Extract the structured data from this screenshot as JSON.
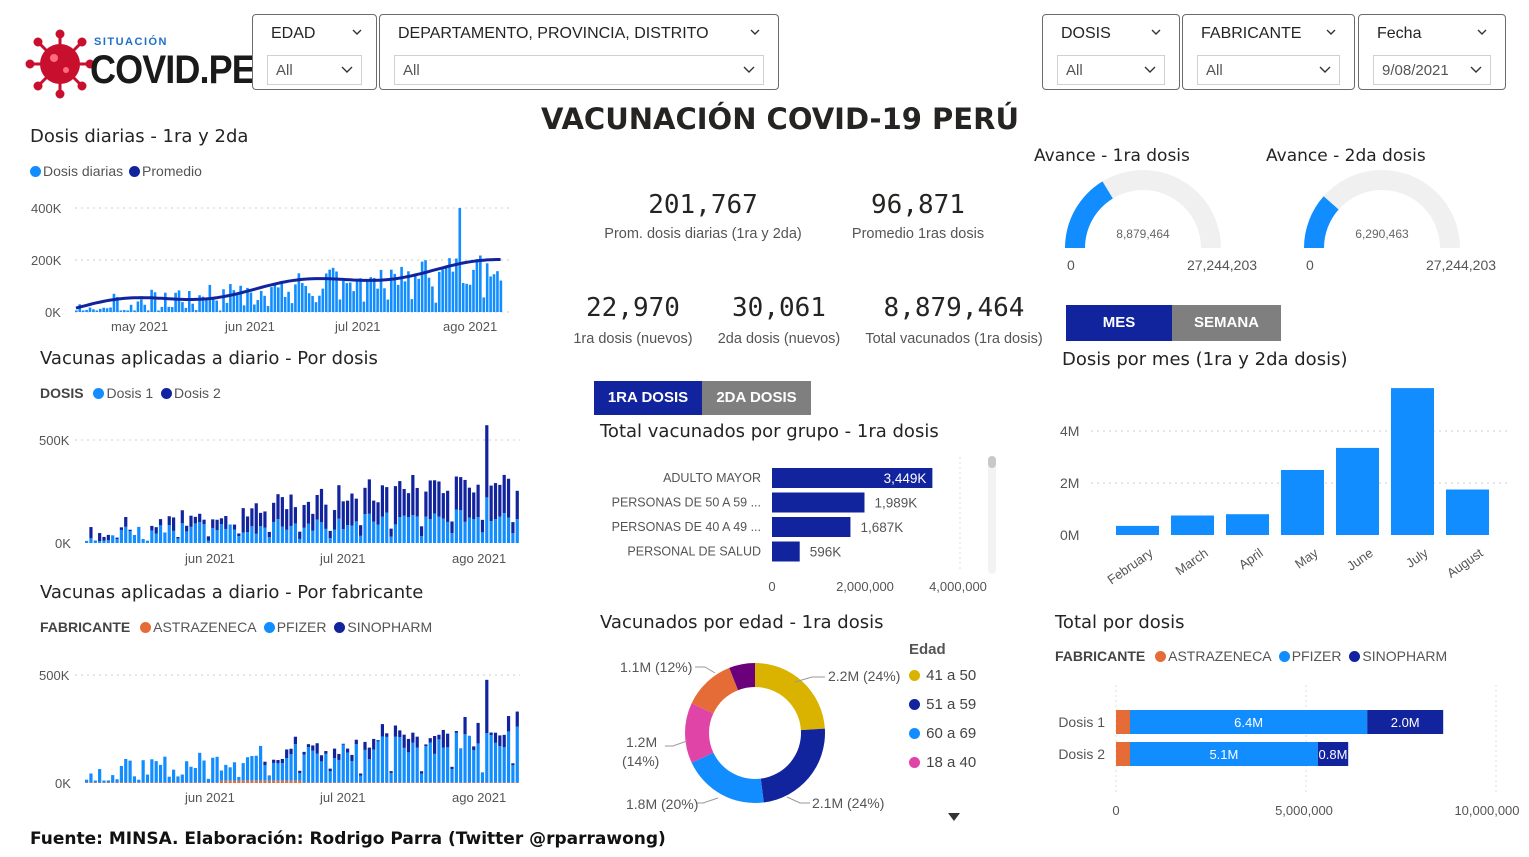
{
  "logo": {
    "small": "SITUACIÓN",
    "big": "COVID.PE"
  },
  "main_title": "VACUNACIÓN COVID-19 PERÚ",
  "footer": "Fuente: MINSA. Elaboración: Rodrigo Parra (Twitter @rparrawong)",
  "filters": {
    "edad": {
      "label": "EDAD",
      "value": "All"
    },
    "ubicacion": {
      "label": "DEPARTAMENTO, PROVINCIA, DISTRITO",
      "value": "All"
    },
    "dosis": {
      "label": "DOSIS",
      "value": "All"
    },
    "fabricante": {
      "label": "FABRICANTE",
      "value": "All"
    },
    "fecha": {
      "label": "Fecha",
      "value": "9/08/2021"
    }
  },
  "kpis": {
    "prom_diarias": {
      "value": "201,767",
      "label": "Prom. dosis diarias (1ra y 2da)"
    },
    "prom_1ras": {
      "value": "96,871",
      "label": "Promedio 1ras dosis"
    },
    "nuevos_1ra": {
      "value": "22,970",
      "label": "1ra dosis (nuevos)"
    },
    "nuevos_2da": {
      "value": "30,061",
      "label": "2da dosis (nuevos)"
    },
    "total_vacunados": {
      "value": "8,879,464",
      "label": "Total vacunados (1ra dosis)"
    }
  },
  "gauges": {
    "g1": {
      "title": "Avance - 1ra dosis",
      "value_label": "8,879,464",
      "value": 8879464,
      "min": "0",
      "max": "27,244,203",
      "max_value": 27244203
    },
    "g2": {
      "title": "Avance - 2da dosis",
      "value_label": "6,290,463",
      "value": 6290463,
      "min": "0",
      "max": "27,244,203",
      "max_value": 27244203
    }
  },
  "toggles": {
    "periodo": {
      "active": "MES",
      "inactive": "SEMANA"
    },
    "dosis": {
      "active": "1RA DOSIS",
      "inactive": "2DA DOSIS"
    }
  },
  "colors": {
    "light_blue": "#118DFF",
    "dark_blue": "#12239E",
    "orange": "#E66C37",
    "grey_btn": "#7f7f7f"
  },
  "chart1": {
    "title": "Dosis diarias - 1ra y 2da",
    "legend": [
      "Dosis diarias",
      "Promedio"
    ],
    "yticks": [
      "400K",
      "200K",
      "0K"
    ],
    "xticks": [
      "may 2021",
      "jun 2021",
      "jul 2021",
      "ago 2021"
    ]
  },
  "chart2": {
    "title": "Vacunas aplicadas a diario - Por dosis",
    "legend_title": "DOSIS",
    "legend": [
      "Dosis 1",
      "Dosis 2"
    ],
    "yticks": [
      "500K",
      "0K"
    ],
    "xticks": [
      "jun 2021",
      "jul 2021",
      "ago 2021"
    ]
  },
  "chart3": {
    "title": "Vacunas aplicadas a diario - Por fabricante",
    "legend_title": "FABRICANTE",
    "legend": [
      "ASTRAZENECA",
      "PFIZER",
      "SINOPHARM"
    ],
    "yticks": [
      "500K",
      "0K"
    ],
    "xticks": [
      "jun 2021",
      "jul 2021",
      "ago 2021"
    ]
  },
  "grupo": {
    "title": "Total vacunados por grupo - 1ra dosis",
    "categories": [
      "ADULTO MAYOR",
      "PERSONAS DE 50 A 59 ...",
      "PERSONAS DE 40 A 49 ...",
      "PERSONAL DE SALUD"
    ],
    "values": [
      3449000,
      1989000,
      1687000,
      596000
    ],
    "labels": [
      "3,449K",
      "1,989K",
      "1,687K",
      "596K"
    ],
    "xticks": [
      "0",
      "2,000,000",
      "4,000,000"
    ]
  },
  "edad": {
    "title": "Vacunados por edad - 1ra dosis",
    "legend_title": "Edad",
    "legend": [
      "41 a 50",
      "51 a 59",
      "60 a 69",
      "18 a 40"
    ],
    "slices": [
      {
        "label": "2.2M (24%)",
        "value": 24,
        "color": "#D9B300"
      },
      {
        "label": "2.1M (24%)",
        "value": 24,
        "color": "#12239E"
      },
      {
        "label": "1.8M (20%)",
        "value": 20,
        "color": "#118DFF"
      },
      {
        "label": "1.2M (14%)",
        "value": 14,
        "color": "#E044A7"
      },
      {
        "label": "1.1M (12%)",
        "value": 12,
        "color": "#E66C37"
      },
      {
        "label": "",
        "value": 6,
        "color": "#6B007B"
      }
    ]
  },
  "mes": {
    "title": "Dosis por mes (1ra y 2da dosis)",
    "categories": [
      "February",
      "March",
      "April",
      "May",
      "June",
      "July",
      "August"
    ],
    "values": [
      0.35,
      0.75,
      0.8,
      2.5,
      3.35,
      5.65,
      1.75
    ],
    "yticks": [
      "4M",
      "2M",
      "0M"
    ]
  },
  "total_dosis": {
    "title": "Total por dosis",
    "legend_title": "FABRICANTE",
    "legend": [
      "ASTRAZENECA",
      "PFIZER",
      "SINOPHARM"
    ],
    "rows": [
      {
        "name": "Dosis 1",
        "astra": 0.3,
        "pfizer": 6.4,
        "sino": 2.0,
        "pfizer_label": "6.4M",
        "sino_label": "2.0M"
      },
      {
        "name": "Dosis 2",
        "astra": 0.3,
        "pfizer": 5.1,
        "sino": 0.8,
        "pfizer_label": "5.1M",
        "sino_label": "0.8M"
      }
    ],
    "xticks": [
      "0",
      "5,000,000",
      "10,000,000"
    ]
  }
}
